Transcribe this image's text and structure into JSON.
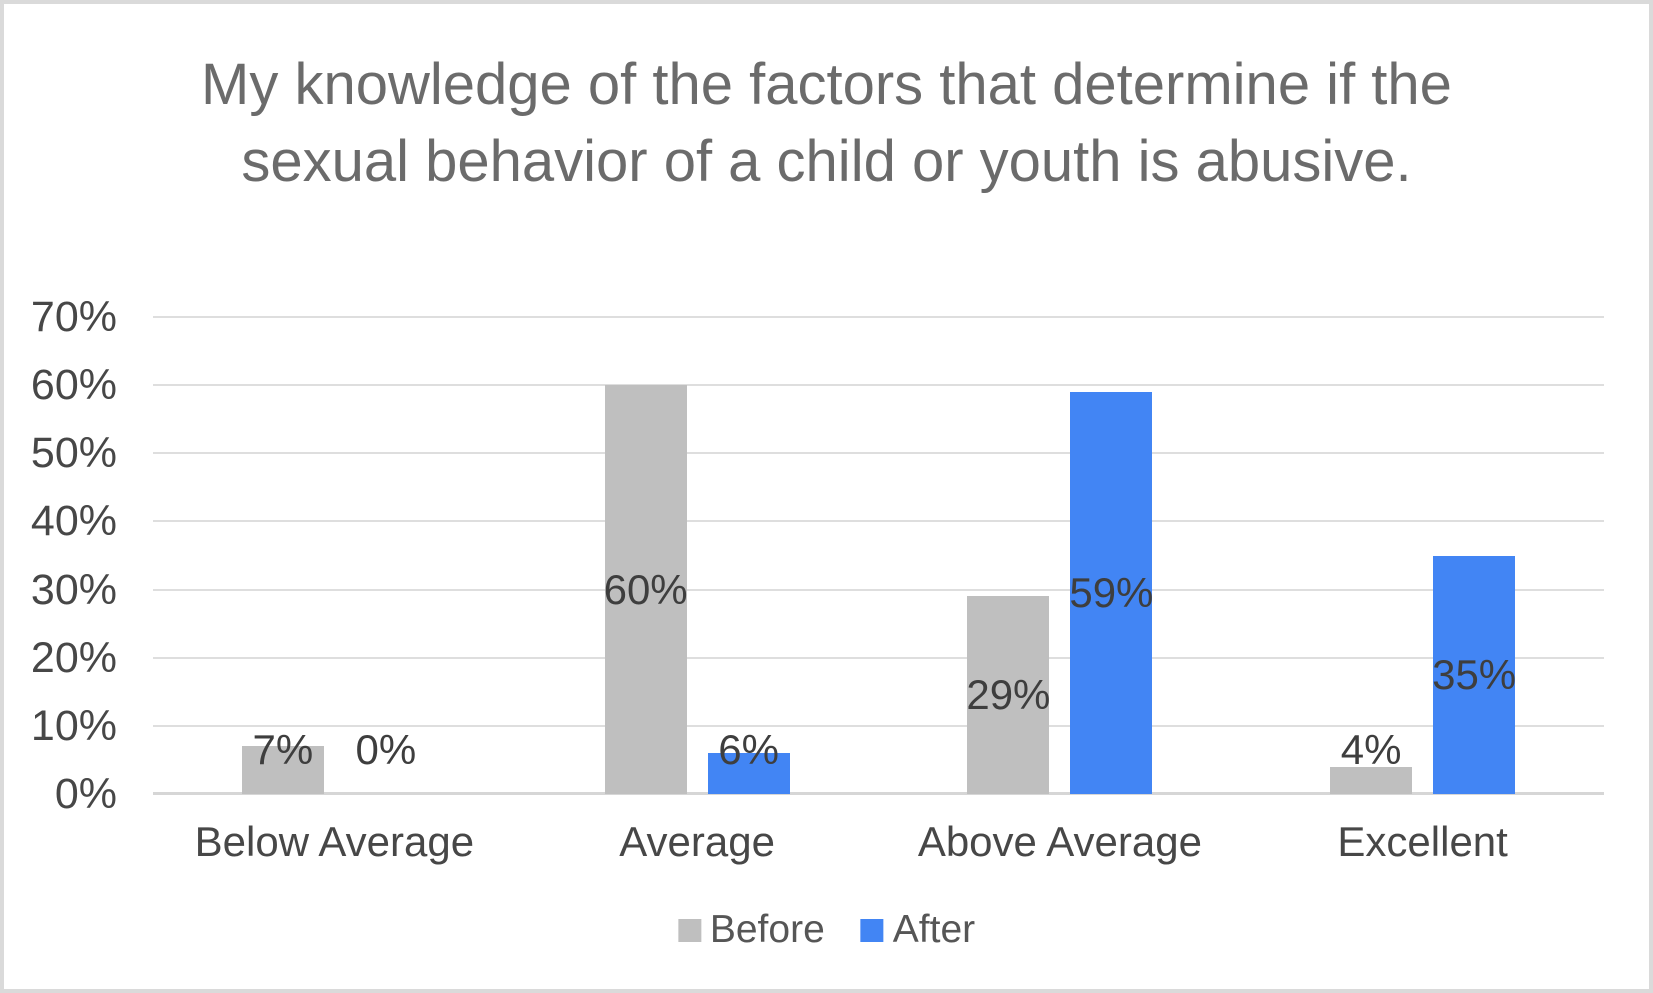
{
  "chart_data": {
    "type": "bar",
    "title": "My knowledge of the factors that determine if the sexual behavior of a child or youth is abusive.",
    "categories": [
      "Below Average",
      "Average",
      "Above Average",
      "Excellent"
    ],
    "series": [
      {
        "name": "Before",
        "color": "#bfbfbf",
        "values": [
          7,
          60,
          29,
          4
        ],
        "labels": [
          "7%",
          "60%",
          "29%",
          "4%"
        ]
      },
      {
        "name": "After",
        "color": "#4285f4",
        "values": [
          0,
          6,
          59,
          35
        ],
        "labels": [
          "0%",
          "6%",
          "59%",
          "35%"
        ]
      }
    ],
    "xlabel": "",
    "ylabel": "",
    "y_axis": {
      "min": 0,
      "max": 70,
      "step": 10,
      "tick_labels": [
        "70%",
        "60%",
        "50%",
        "40%",
        "30%",
        "20%",
        "10%",
        "0%"
      ],
      "unit": "%"
    },
    "legend": {
      "position": "bottom",
      "entries": [
        "Before",
        "After"
      ]
    },
    "grid": true
  },
  "colors": {
    "series_before": "#bfbfbf",
    "series_after": "#4285f4",
    "gridline": "#dedede",
    "axis_line": "#d6d6d6",
    "title_text": "#6b6b6b",
    "axis_text": "#474747",
    "data_label_text": "#3e3e3e",
    "legend_text": "#565656",
    "frame_border": "#dadada",
    "background": "#ffffff"
  }
}
